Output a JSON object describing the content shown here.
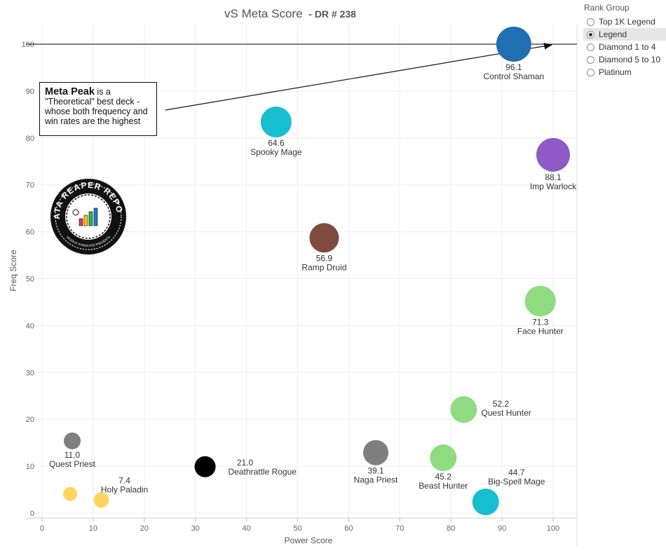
{
  "title": "vS Meta Score",
  "subtitle": "- DR # 238",
  "rank_group": {
    "title": "Rank Group",
    "options": [
      {
        "label": "Top 1K Legend",
        "selected": false
      },
      {
        "label": "Legend",
        "selected": true
      },
      {
        "label": "Diamond 1 to 4",
        "selected": false
      },
      {
        "label": "Diamond 5 to 10",
        "selected": false
      },
      {
        "label": "Platinum",
        "selected": false
      }
    ]
  },
  "annotation": {
    "bold": "Meta Peak",
    "rest": " is a \"Theoretical\" best deck - whose both frequency and win rates are the highest"
  },
  "chart_data": {
    "type": "scatter",
    "title": "vS Meta Score - DR # 238",
    "xlabel": "Power Score",
    "ylabel": "Freq Score",
    "xlim": [
      0,
      105
    ],
    "ylim": [
      -1,
      105
    ],
    "xticks": [
      0,
      10,
      20,
      30,
      40,
      50,
      60,
      70,
      80,
      90,
      100
    ],
    "yticks": [
      0,
      10,
      20,
      30,
      40,
      50,
      60,
      70,
      80,
      90,
      100
    ],
    "grid": true,
    "reference_line_y": 100,
    "meta_peak": {
      "x": 100,
      "y": 100
    },
    "points": [
      {
        "name": "Control Shaman",
        "score": "96.1",
        "x": 92.3,
        "y": 100.0,
        "size": 25,
        "color": "#1f6fb2",
        "label_pos": "below"
      },
      {
        "name": "Imp Warlock",
        "score": "88.1",
        "x": 100.0,
        "y": 76.4,
        "size": 24,
        "color": "#8e5ac5",
        "label_pos": "below"
      },
      {
        "name": "Spooky Mage",
        "score": "64.6",
        "x": 45.8,
        "y": 83.4,
        "size": 22,
        "color": "#17becf",
        "label_pos": "below"
      },
      {
        "name": "Ramp Druid",
        "score": "56.9",
        "x": 55.2,
        "y": 58.7,
        "size": 21,
        "color": "#7e4c3f",
        "label_pos": "below"
      },
      {
        "name": "Face Hunter",
        "score": "71.3",
        "x": 97.5,
        "y": 45.2,
        "size": 22,
        "color": "#8fdc80",
        "label_pos": "below"
      },
      {
        "name": "Quest Hunter",
        "score": "52.2",
        "x": 82.5,
        "y": 22.1,
        "size": 19,
        "color": "#8fdc80",
        "label_pos": "right"
      },
      {
        "name": "Beast Hunter",
        "score": "45.2",
        "x": 78.5,
        "y": 11.8,
        "size": 19,
        "color": "#8fdc80",
        "label_pos": "below"
      },
      {
        "name": "Big-Spell Mage",
        "score": "44.7",
        "x": 86.8,
        "y": 2.4,
        "size": 19,
        "color": "#17becf",
        "label_pos": "above-right"
      },
      {
        "name": "Naga Priest",
        "score": "39.1",
        "x": 65.3,
        "y": 12.9,
        "size": 18,
        "color": "#7f7f7f",
        "label_pos": "below"
      },
      {
        "name": "Deathrattle Rogue",
        "score": "21.0",
        "x": 31.9,
        "y": 9.9,
        "size": 15,
        "color": "#000000",
        "label_pos": "right"
      },
      {
        "name": "Quest Priest",
        "score": "11.0",
        "x": 5.9,
        "y": 15.4,
        "size": 12,
        "color": "#7f7f7f",
        "label_pos": "below"
      },
      {
        "name": "Holy Paladin",
        "score": "7.4",
        "x": 11.6,
        "y": 2.8,
        "size": 11,
        "color": "#ffd65c",
        "label_pos": "above-right"
      },
      {
        "name": "",
        "score": "",
        "x": 5.5,
        "y": 4.1,
        "size": 10,
        "color": "#ffd65c",
        "label_pos": "none"
      }
    ]
  },
  "logo": {
    "name": "data-reaper-report-logo",
    "text_top": "DATA REAPER REPORT",
    "text_bottom": "VICIOUS SYNDICATE PRESENTS"
  }
}
